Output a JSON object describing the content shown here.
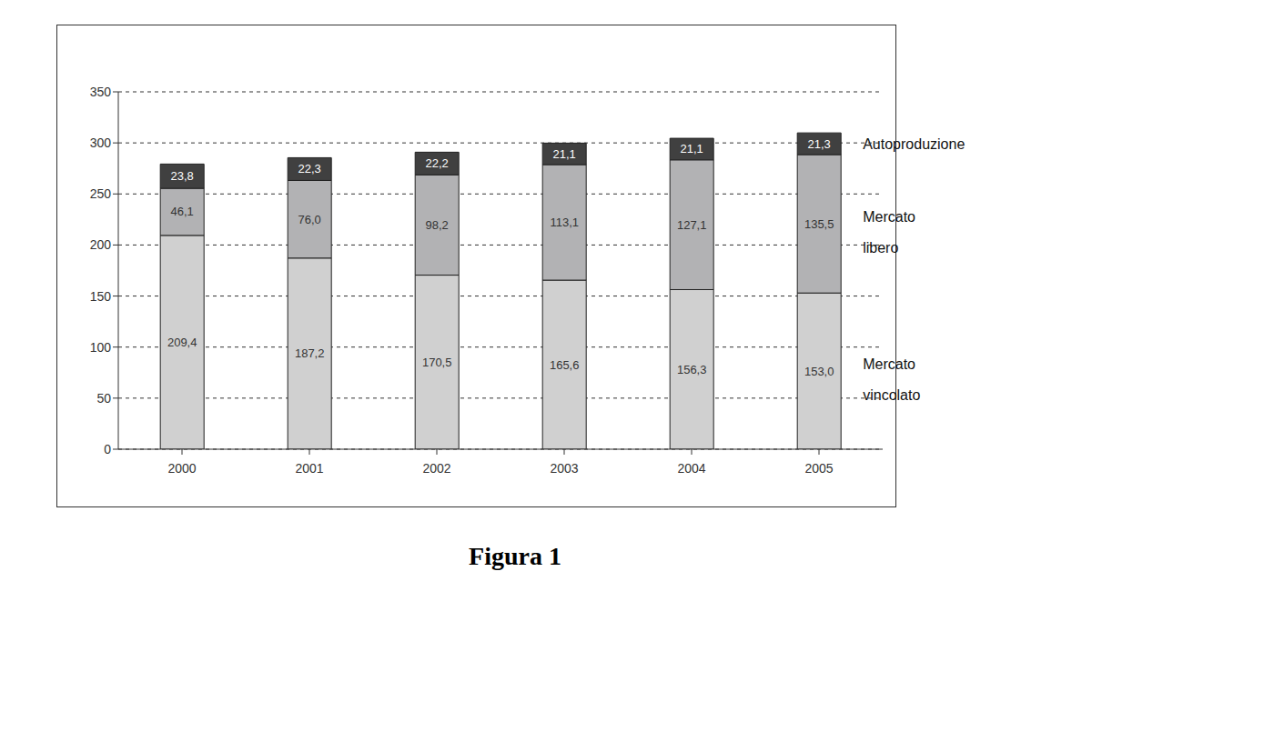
{
  "chart_data": {
    "type": "bar",
    "title": "Figura 1",
    "categories": [
      "2000",
      "2001",
      "2002",
      "2003",
      "2004",
      "2005"
    ],
    "series": [
      {
        "name": "Mercato vincolato",
        "color": "#d0d0d0",
        "values": [
          209.4,
          187.2,
          170.5,
          165.6,
          156.3,
          153.0
        ],
        "value_labels": [
          "209,4",
          "187,2",
          "170,5",
          "165,6",
          "156,3",
          "153,0"
        ]
      },
      {
        "name": "Mercato libero",
        "color": "#b2b2b4",
        "values": [
          46.1,
          76.0,
          98.2,
          113.1,
          127.1,
          135.5
        ],
        "value_labels": [
          "46,1",
          "76,0",
          "98,2",
          "113,1",
          "127,1",
          "135,5"
        ]
      },
      {
        "name": "Autoproduzione",
        "color": "#404040",
        "values": [
          23.8,
          22.3,
          22.2,
          21.1,
          21.1,
          21.3
        ],
        "value_labels": [
          "23,8",
          "22,3",
          "22,2",
          "21,1",
          "21,1",
          "21,3"
        ]
      }
    ],
    "ylim": [
      0,
      350
    ],
    "yticks": [
      0,
      50,
      100,
      150,
      200,
      250,
      300,
      350
    ],
    "grid": true,
    "stacked": true,
    "data_labels": true,
    "legend": "right"
  }
}
